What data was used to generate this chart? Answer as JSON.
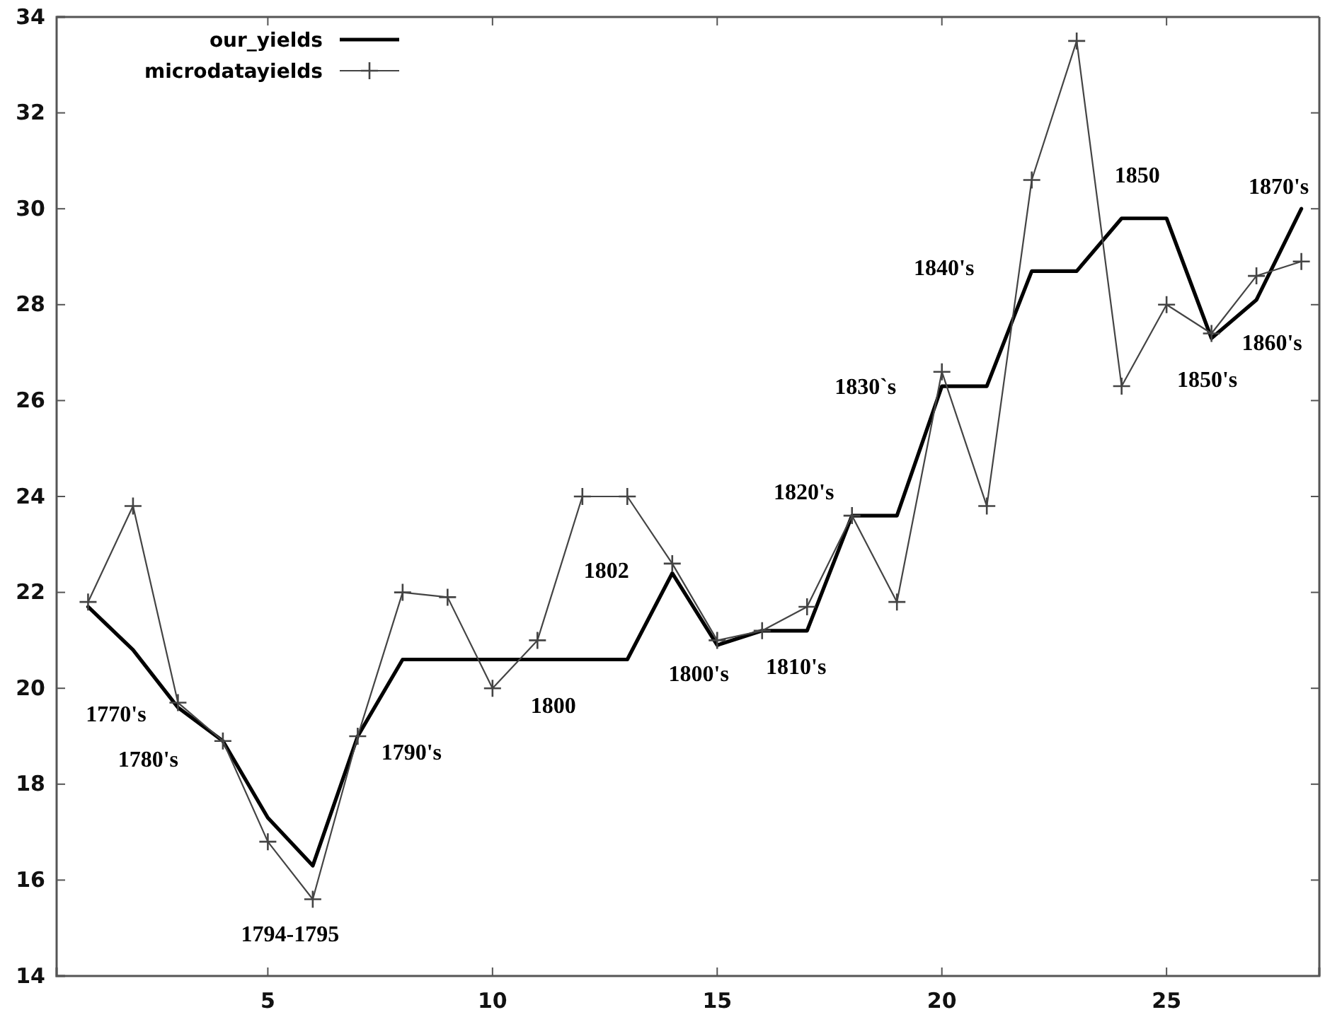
{
  "chart_data": {
    "type": "line",
    "x": [
      1,
      2,
      3,
      4,
      5,
      6,
      7,
      8,
      9,
      10,
      11,
      12,
      13,
      14,
      15,
      16,
      17,
      18,
      19,
      20,
      21,
      22,
      23,
      24,
      25,
      26,
      27,
      28
    ],
    "series": [
      {
        "name": "our_yields",
        "color": "#000000",
        "marker": "none",
        "values": [
          21.7,
          20.8,
          19.6,
          18.9,
          17.3,
          16.3,
          19.0,
          20.6,
          20.6,
          20.6,
          20.6,
          20.6,
          20.6,
          22.4,
          20.9,
          21.2,
          21.2,
          23.6,
          23.6,
          26.3,
          26.3,
          28.7,
          28.7,
          29.8,
          29.8,
          27.3,
          28.1,
          30.0
        ]
      },
      {
        "name": "microdatayields",
        "color": "#444444",
        "marker": "cross",
        "values": [
          21.8,
          23.8,
          19.7,
          18.9,
          16.8,
          15.6,
          19.0,
          22.0,
          21.9,
          20.0,
          21.0,
          24.0,
          24.0,
          22.6,
          21.0,
          21.2,
          21.7,
          23.6,
          21.8,
          26.6,
          23.8,
          30.6,
          33.5,
          26.3,
          28.0,
          27.4,
          28.6,
          28.9
        ]
      }
    ],
    "xlim": [
      0.3,
      28.4
    ],
    "xticks": [
      5,
      10,
      15,
      20,
      25
    ],
    "ylim": [
      14,
      34
    ],
    "yticks": [
      14,
      16,
      18,
      20,
      22,
      24,
      26,
      28,
      30,
      32,
      34
    ],
    "grid": false,
    "legend": "top left",
    "line_style": "solid",
    "annotations": [
      {
        "text": "1770's",
        "x": 2,
        "y": 20.8
      },
      {
        "text": "1780's",
        "x": 3,
        "y": 19.6
      },
      {
        "text": "1794-1795",
        "x": 6,
        "y": 15.6
      },
      {
        "text": "1790's",
        "x": 7,
        "y": 19.0
      },
      {
        "text": "1800",
        "x": 10,
        "y": 20.0
      },
      {
        "text": "1802",
        "x": 12,
        "y": 24.0
      },
      {
        "text": "1800's",
        "x": 15,
        "y": 21.0
      },
      {
        "text": "1810's",
        "x": 16,
        "y": 21.2
      },
      {
        "text": "1820's",
        "x": 18,
        "y": 23.6
      },
      {
        "text": "1830`s",
        "x": 20,
        "y": 26.3
      },
      {
        "text": "1840's",
        "x": 22,
        "y": 28.7
      },
      {
        "text": "1850",
        "x": 24,
        "y": 29.8
      },
      {
        "text": "1850's",
        "x": 26,
        "y": 27.3
      },
      {
        "text": "1860's",
        "x": 27,
        "y": 28.1
      },
      {
        "text": "1870's",
        "x": 28,
        "y": 30.0
      }
    ]
  }
}
